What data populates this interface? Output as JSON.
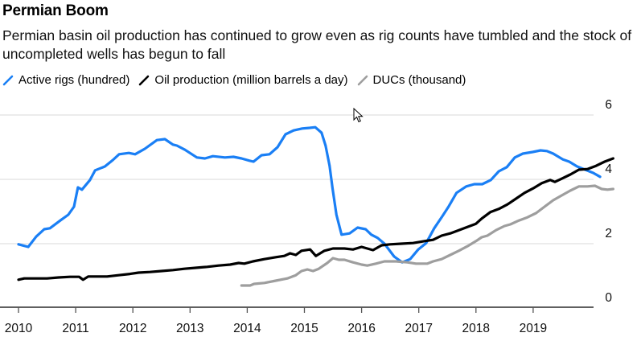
{
  "header": {
    "title": "Permian Boom",
    "subtitle": "Permian basin oil production has continued to grow even as rig counts have tumbled and the stock of uncompleted wells has begun to fall"
  },
  "legend": [
    {
      "label": "Active rigs (hundred)",
      "color": "#1a7ff5",
      "icon": "line-swatch-icon"
    },
    {
      "label": "Oil production (million barrels a day)",
      "color": "#000000",
      "icon": "line-swatch-icon"
    },
    {
      "label": "DUCs (thousand)",
      "color": "#9e9e9e",
      "icon": "line-swatch-icon"
    }
  ],
  "chart_data": {
    "type": "line",
    "title": "Permian Boom",
    "subtitle": "Permian basin oil production has continued to grow even as rig counts have tumbled and the stock of uncompleted wells has begun to fall",
    "xlabel": "",
    "ylabel": "",
    "xlim": [
      2010,
      2020
    ],
    "ylim": [
      0,
      6
    ],
    "x_ticks": [
      "2010",
      "2011",
      "2012",
      "2013",
      "2014",
      "2015",
      "2016",
      "2017",
      "2018",
      "2019"
    ],
    "y_ticks": [
      0,
      2,
      4,
      6
    ],
    "y_axis_side": "right",
    "grid": true,
    "legend_position": "top-left",
    "series": [
      {
        "name": "Active rigs (hundred)",
        "color": "#1a7ff5",
        "points": [
          [
            2010.0,
            1.98
          ],
          [
            2010.17,
            1.9
          ],
          [
            2010.31,
            2.22
          ],
          [
            2010.45,
            2.45
          ],
          [
            2010.55,
            2.48
          ],
          [
            2010.73,
            2.72
          ],
          [
            2010.87,
            2.9
          ],
          [
            2010.97,
            3.15
          ],
          [
            2011.04,
            3.75
          ],
          [
            2011.11,
            3.68
          ],
          [
            2011.25,
            3.98
          ],
          [
            2011.34,
            4.28
          ],
          [
            2011.51,
            4.4
          ],
          [
            2011.65,
            4.6
          ],
          [
            2011.76,
            4.78
          ],
          [
            2011.93,
            4.82
          ],
          [
            2012.04,
            4.78
          ],
          [
            2012.21,
            4.95
          ],
          [
            2012.42,
            5.22
          ],
          [
            2012.56,
            5.25
          ],
          [
            2012.7,
            5.08
          ],
          [
            2012.77,
            5.05
          ],
          [
            2012.91,
            4.92
          ],
          [
            2013.12,
            4.68
          ],
          [
            2013.26,
            4.65
          ],
          [
            2013.4,
            4.72
          ],
          [
            2013.61,
            4.68
          ],
          [
            2013.76,
            4.7
          ],
          [
            2013.9,
            4.65
          ],
          [
            2014.04,
            4.58
          ],
          [
            2014.11,
            4.55
          ],
          [
            2014.25,
            4.75
          ],
          [
            2014.39,
            4.78
          ],
          [
            2014.53,
            5.0
          ],
          [
            2014.67,
            5.4
          ],
          [
            2014.81,
            5.52
          ],
          [
            2014.96,
            5.58
          ],
          [
            2015.09,
            5.6
          ],
          [
            2015.19,
            5.62
          ],
          [
            2015.3,
            5.45
          ],
          [
            2015.37,
            5.05
          ],
          [
            2015.44,
            4.42
          ],
          [
            2015.49,
            3.75
          ],
          [
            2015.56,
            2.9
          ],
          [
            2015.65,
            2.28
          ],
          [
            2015.79,
            2.32
          ],
          [
            2015.93,
            2.5
          ],
          [
            2016.07,
            2.45
          ],
          [
            2016.17,
            2.28
          ],
          [
            2016.28,
            2.18
          ],
          [
            2016.4,
            2.0
          ],
          [
            2016.57,
            1.6
          ],
          [
            2016.71,
            1.42
          ],
          [
            2016.85,
            1.52
          ],
          [
            2016.99,
            1.82
          ],
          [
            2017.13,
            2.02
          ],
          [
            2017.27,
            2.48
          ],
          [
            2017.41,
            2.85
          ],
          [
            2017.52,
            3.15
          ],
          [
            2017.66,
            3.58
          ],
          [
            2017.83,
            3.78
          ],
          [
            2017.97,
            3.85
          ],
          [
            2018.11,
            3.85
          ],
          [
            2018.26,
            3.98
          ],
          [
            2018.4,
            4.25
          ],
          [
            2018.54,
            4.38
          ],
          [
            2018.68,
            4.68
          ],
          [
            2018.82,
            4.8
          ],
          [
            2018.99,
            4.85
          ],
          [
            2019.13,
            4.9
          ],
          [
            2019.24,
            4.88
          ],
          [
            2019.35,
            4.8
          ],
          [
            2019.52,
            4.62
          ],
          [
            2019.63,
            4.55
          ],
          [
            2019.77,
            4.4
          ],
          [
            2019.91,
            4.3
          ],
          [
            2020.05,
            4.2
          ],
          [
            2020.17,
            4.08
          ]
        ]
      },
      {
        "name": "Oil production (million barrels a day)",
        "color": "#000000",
        "points": [
          [
            2010.0,
            0.88
          ],
          [
            2010.1,
            0.92
          ],
          [
            2010.31,
            0.92
          ],
          [
            2010.5,
            0.92
          ],
          [
            2010.7,
            0.95
          ],
          [
            2010.9,
            0.97
          ],
          [
            2011.06,
            0.97
          ],
          [
            2011.13,
            0.88
          ],
          [
            2011.22,
            0.98
          ],
          [
            2011.4,
            0.98
          ],
          [
            2011.55,
            0.98
          ],
          [
            2011.75,
            1.02
          ],
          [
            2011.95,
            1.06
          ],
          [
            2012.1,
            1.1
          ],
          [
            2012.3,
            1.12
          ],
          [
            2012.5,
            1.15
          ],
          [
            2012.7,
            1.18
          ],
          [
            2012.9,
            1.22
          ],
          [
            2013.1,
            1.25
          ],
          [
            2013.3,
            1.28
          ],
          [
            2013.5,
            1.32
          ],
          [
            2013.7,
            1.35
          ],
          [
            2013.85,
            1.4
          ],
          [
            2013.95,
            1.38
          ],
          [
            2014.1,
            1.45
          ],
          [
            2014.3,
            1.52
          ],
          [
            2014.5,
            1.58
          ],
          [
            2014.65,
            1.62
          ],
          [
            2014.75,
            1.7
          ],
          [
            2014.85,
            1.65
          ],
          [
            2014.95,
            1.78
          ],
          [
            2015.1,
            1.82
          ],
          [
            2015.2,
            1.62
          ],
          [
            2015.35,
            1.78
          ],
          [
            2015.5,
            1.85
          ],
          [
            2015.7,
            1.85
          ],
          [
            2015.85,
            1.82
          ],
          [
            2016.0,
            1.9
          ],
          [
            2016.1,
            1.85
          ],
          [
            2016.2,
            1.8
          ],
          [
            2016.35,
            1.95
          ],
          [
            2016.5,
            1.98
          ],
          [
            2016.7,
            2.0
          ],
          [
            2016.9,
            2.02
          ],
          [
            2017.1,
            2.08
          ],
          [
            2017.25,
            2.12
          ],
          [
            2017.4,
            2.25
          ],
          [
            2017.55,
            2.32
          ],
          [
            2017.7,
            2.42
          ],
          [
            2017.85,
            2.52
          ],
          [
            2018.0,
            2.62
          ],
          [
            2018.1,
            2.78
          ],
          [
            2018.25,
            2.98
          ],
          [
            2018.4,
            3.08
          ],
          [
            2018.55,
            3.22
          ],
          [
            2018.7,
            3.4
          ],
          [
            2018.85,
            3.58
          ],
          [
            2019.0,
            3.72
          ],
          [
            2019.15,
            3.88
          ],
          [
            2019.3,
            3.98
          ],
          [
            2019.38,
            3.92
          ],
          [
            2019.5,
            4.02
          ],
          [
            2019.65,
            4.15
          ],
          [
            2019.8,
            4.3
          ],
          [
            2019.95,
            4.32
          ],
          [
            2020.1,
            4.42
          ],
          [
            2020.25,
            4.55
          ],
          [
            2020.4,
            4.65
          ]
        ]
      },
      {
        "name": "DUCs (thousand)",
        "color": "#9e9e9e",
        "points": [
          [
            2013.9,
            0.7
          ],
          [
            2014.05,
            0.7
          ],
          [
            2014.12,
            0.75
          ],
          [
            2014.3,
            0.78
          ],
          [
            2014.5,
            0.85
          ],
          [
            2014.7,
            0.92
          ],
          [
            2014.85,
            1.02
          ],
          [
            2014.95,
            1.15
          ],
          [
            2015.05,
            1.2
          ],
          [
            2015.15,
            1.15
          ],
          [
            2015.25,
            1.22
          ],
          [
            2015.4,
            1.4
          ],
          [
            2015.5,
            1.55
          ],
          [
            2015.6,
            1.5
          ],
          [
            2015.7,
            1.5
          ],
          [
            2015.85,
            1.42
          ],
          [
            2016.0,
            1.35
          ],
          [
            2016.1,
            1.32
          ],
          [
            2016.25,
            1.38
          ],
          [
            2016.4,
            1.45
          ],
          [
            2016.6,
            1.45
          ],
          [
            2016.8,
            1.42
          ],
          [
            2016.95,
            1.38
          ],
          [
            2017.15,
            1.38
          ],
          [
            2017.25,
            1.45
          ],
          [
            2017.4,
            1.52
          ],
          [
            2017.55,
            1.65
          ],
          [
            2017.7,
            1.78
          ],
          [
            2017.85,
            1.92
          ],
          [
            2018.0,
            2.08
          ],
          [
            2018.1,
            2.2
          ],
          [
            2018.2,
            2.25
          ],
          [
            2018.35,
            2.42
          ],
          [
            2018.5,
            2.55
          ],
          [
            2018.6,
            2.6
          ],
          [
            2018.75,
            2.72
          ],
          [
            2018.9,
            2.82
          ],
          [
            2019.05,
            2.95
          ],
          [
            2019.2,
            3.15
          ],
          [
            2019.35,
            3.35
          ],
          [
            2019.5,
            3.5
          ],
          [
            2019.65,
            3.65
          ],
          [
            2019.8,
            3.78
          ],
          [
            2019.95,
            3.78
          ],
          [
            2020.08,
            3.8
          ],
          [
            2020.2,
            3.7
          ],
          [
            2020.3,
            3.68
          ],
          [
            2020.4,
            3.7
          ]
        ]
      }
    ]
  }
}
